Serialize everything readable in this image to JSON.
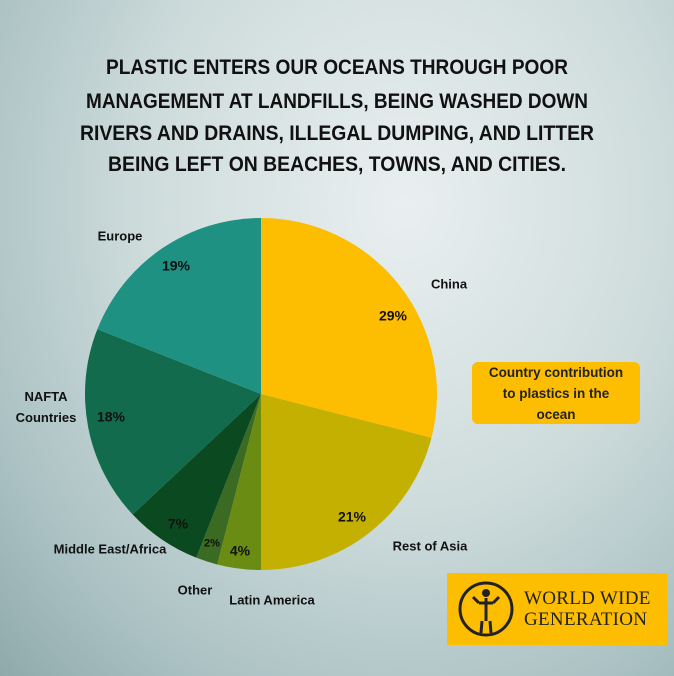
{
  "chart_data": {
    "type": "pie",
    "title": [
      "PLASTIC ENTERS OUR OCEANS THROUGH POOR",
      "MANAGEMENT AT LANDFILLS, BEING WASHED DOWN",
      "RIVERS AND DRAINS, ILLEGAL DUMPING, AND LITTER",
      "BEING LEFT ON BEACHES, TOWNS, AND CITIES."
    ],
    "categories": [
      "China",
      "Rest of Asia",
      "Latin America",
      "Other",
      "Middle East/Africa",
      "NAFTA Countries",
      "Europe"
    ],
    "values": [
      29,
      21,
      4,
      2,
      7,
      18,
      19
    ],
    "value_labels": [
      "29%",
      "21%",
      "4%",
      "2%",
      "7%",
      "18%",
      "19%"
    ],
    "colors": [
      "#fdbd00",
      "#c4b000",
      "#6b8c12",
      "#3b6a22",
      "#0b4a20",
      "#126b4c",
      "#1e9182"
    ],
    "annotation": "Country contribution to plastics in the ocean",
    "logo": [
      "WORLD WIDE",
      "GENERATION"
    ]
  }
}
